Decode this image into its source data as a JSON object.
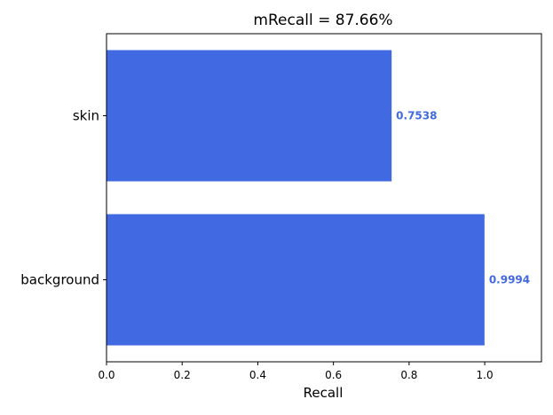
{
  "chart_data": {
    "type": "bar",
    "orientation": "horizontal",
    "title": "mRecall = 87.66%",
    "xlabel": "Recall",
    "ylabel": "",
    "categories": [
      "skin",
      "background"
    ],
    "values": [
      0.7538,
      0.9994
    ],
    "value_labels": [
      "0.7538",
      "0.9994"
    ],
    "xlim": [
      0,
      1.15
    ],
    "xticks": [
      "0.0",
      "0.2",
      "0.4",
      "0.6",
      "0.8",
      "1.0"
    ],
    "grid": false,
    "legend": "none",
    "bar_color": "#4169e1",
    "label_color": "#4169e1"
  }
}
